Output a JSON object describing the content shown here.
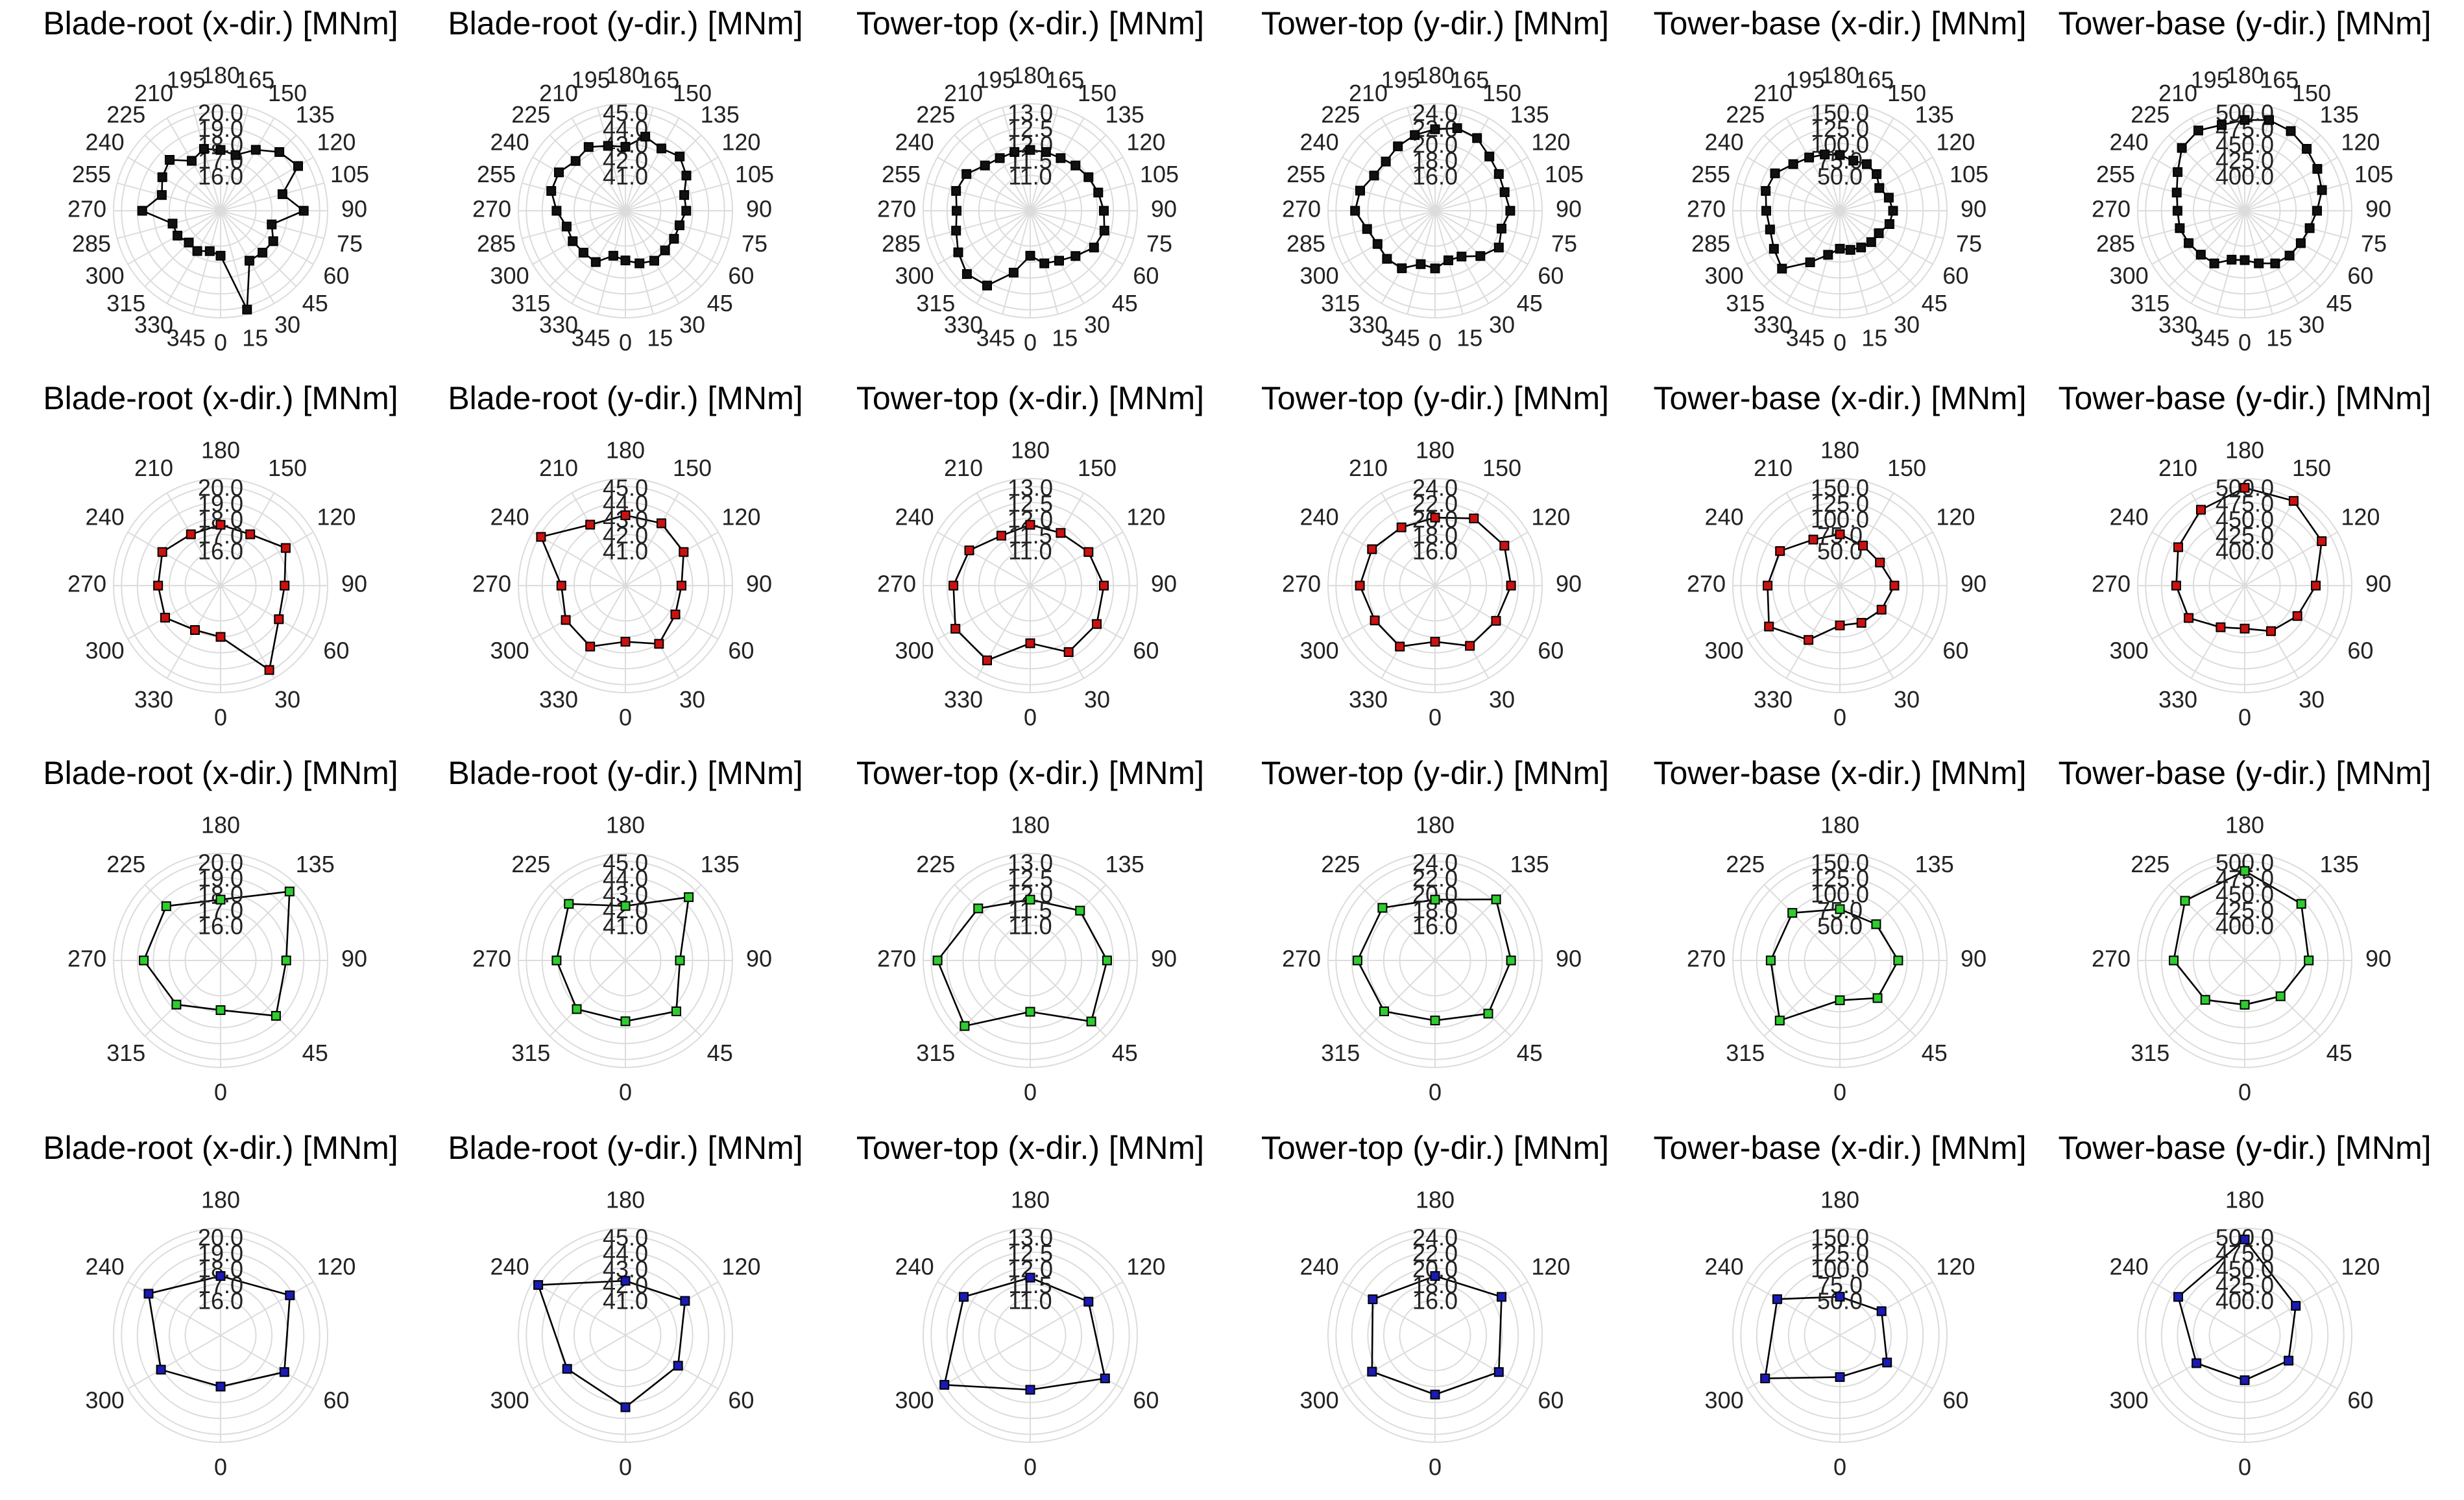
{
  "chart_data": {
    "type": "polar",
    "grid": true,
    "angle_direction": "counterclockwise, 0 at bottom",
    "panels_layout": "4 rows x 6 columns",
    "columns": [
      {
        "title": "Blade-root (x-dir.) [MNm]",
        "radial_ticks": [
          "16.0",
          "17.0",
          "18.0",
          "19.0",
          "20.0"
        ],
        "rlim": [
          15,
          20.5
        ]
      },
      {
        "title": "Blade-root (y-dir.) [MNm]",
        "radial_ticks": [
          "41.0",
          "42.0",
          "43.0",
          "44.0",
          "45.0"
        ],
        "rlim": [
          40,
          45.5
        ]
      },
      {
        "title": "Tower-top (x-dir.) [MNm]",
        "radial_ticks": [
          "11.0",
          "11.5",
          "12.0",
          "12.5",
          "13.0"
        ],
        "rlim": [
          10.5,
          13.25
        ]
      },
      {
        "title": "Tower-top (y-dir.) [MNm]",
        "radial_ticks": [
          "16.0",
          "18.0",
          "20.0",
          "22.0",
          "24.0"
        ],
        "rlim": [
          14,
          25
        ]
      },
      {
        "title": "Tower-base (x-dir.) [MNm]",
        "radial_ticks": [
          "50.0",
          "75.0",
          "100.0",
          "125.0",
          "150.0"
        ],
        "rlim": [
          25,
          162.5
        ]
      },
      {
        "title": "Tower-base (y-dir.) [MNm]",
        "radial_ticks": [
          "400.0",
          "425.0",
          "450.0",
          "475.0",
          "500.0"
        ],
        "rlim": [
          375,
          512.5
        ]
      }
    ],
    "rows": [
      {
        "angle_step": 15,
        "angle_ticks": [
          "0",
          "15",
          "30",
          "45",
          "60",
          "75",
          "90",
          "105",
          "120",
          "135",
          "150",
          "165",
          "180",
          "195",
          "210",
          "225",
          "240",
          "255",
          "270",
          "285",
          "300",
          "315",
          "330",
          "345"
        ],
        "marker_color": "#111111",
        "series": [
          [
            16.6,
            20.2,
            17.4,
            17.5,
            17.6,
            17.1,
            19.0,
            17.8,
            19.4,
            19.0,
            18.2,
            17.4,
            17.6,
            17.8,
            17.4,
            18.3,
            18.0,
            17.6,
            18.7,
            16.9,
            16.9,
            16.6,
            16.7,
            16.4
          ],
          [
            41.9,
            42.2,
            42.4,
            42.3,
            42.3,
            42.3,
            42.6,
            42.6,
            43.2,
            43.6,
            43.3,
            43.6,
            42.8,
            43.0,
            43.4,
            43.2,
            43.6,
            43.6,
            43.1,
            42.6,
            42.6,
            42.5,
            42.5,
            41.7
          ],
          [
            11.3,
            11.6,
            11.7,
            11.9,
            12.2,
            12.3,
            12.2,
            12.1,
            12.0,
            11.9,
            11.8,
            11.8,
            11.8,
            11.8,
            11.8,
            11.9,
            12.2,
            12.3,
            12.2,
            12.3,
            12.5,
            12.7,
            12.6,
            11.9
          ],
          [
            18.8,
            18.0,
            18.2,
            19.6,
            20.8,
            20.2,
            21.0,
            20.6,
            20.8,
            21.2,
            22.1,
            22.3,
            21.8,
            21.4,
            20.9,
            20.3,
            20.4,
            21.3,
            21.6,
            20.4,
            19.9,
            20.1,
            19.9,
            18.5
          ],
          [
            54.0,
            58.0,
            61.0,
            64.0,
            65.0,
            75.0,
            78.0,
            74.0,
            66.0,
            76.0,
            79.0,
            76.0,
            82.0,
            86.0,
            91.0,
            98.0,
            112.0,
            115.0,
            110.0,
            108.0,
            114.0,
            123.0,
            88.0,
            66.0
          ],
          [
            422.0,
            430.0,
            440.0,
            444.0,
            446.0,
            450.0,
            458.0,
            470.0,
            476.0,
            482.0,
            489.0,
            492.0,
            487.0,
            484.0,
            490.0,
            484.0,
            466.0,
            455.0,
            450.0,
            450.0,
            446.0,
            442.0,
            440.0,
            424.0
          ]
        ]
      },
      {
        "angle_step": 30,
        "angle_ticks": [
          "0",
          "30",
          "60",
          "90",
          "120",
          "150",
          "180",
          "210",
          "240",
          "270",
          "300",
          "330"
        ],
        "marker_color": "#cc1111",
        "series": [
          [
            17.0,
            19.9,
            18.0,
            17.8,
            18.5,
            17.5,
            17.6,
            17.5,
            18.0,
            17.7,
            17.8,
            17.0
          ],
          [
            42.3,
            43.0,
            42.4,
            42.3,
            43.0,
            43.3,
            43.2,
            43.2,
            44.9,
            42.8,
            43.1,
            43.2
          ],
          [
            11.7,
            12.3,
            12.3,
            12.2,
            12.0,
            11.8,
            11.8,
            11.7,
            12.1,
            12.3,
            12.6,
            12.6
          ],
          [
            18.6,
            20.3,
            20.4,
            21.1,
            21.6,
            21.3,
            20.1,
            20.0,
            20.7,
            21.0,
            20.3,
            20.4
          ],
          [
            57.0,
            62.0,
            70.0,
            80.0,
            67.0,
            67.0,
            75.0,
            78.0,
            103.0,
            108.0,
            123.0,
            93.0
          ],
          [
            412.0,
            427.0,
            440.0,
            456.0,
            484.0,
            498.0,
            498.0,
            482.0,
            465.0,
            452.0,
            446.0,
            420.0
          ]
        ]
      },
      {
        "angle_step": 45,
        "angle_ticks": [
          "0",
          "45",
          "90",
          "135",
          "180",
          "225",
          "270",
          "315"
        ],
        "marker_color": "#2ecc2e",
        "series": [
          [
            16.9,
            18.7,
            17.9,
            19.9,
            17.6,
            18.6,
            18.6,
            17.7
          ],
          [
            42.6,
            43.3,
            42.2,
            44.4,
            42.2,
            43.8,
            43.1,
            43.1
          ],
          [
            11.5,
            12.6,
            12.3,
            12.1,
            11.8,
            12.2,
            12.8,
            12.8
          ],
          [
            19.1,
            21.0,
            21.1,
            22.4,
            19.2,
            20.9,
            21.3,
            20.6
          ],
          [
            57.0,
            78.0,
            86.0,
            75.0,
            75.0,
            100.0,
            103.0,
            128.0
          ],
          [
            414.0,
            424.0,
            445.0,
            470.0,
            485.0,
            477.0,
            456.0,
            432.0
          ]
        ]
      },
      {
        "angle_step": 60,
        "angle_ticks": [
          "0",
          "60",
          "120",
          "180",
          "240",
          "300"
        ],
        "marker_color": "#1a1ab4",
        "series": [
          [
            17.0,
            18.4,
            18.8,
            17.5,
            19.0,
            18.1
          ],
          [
            43.3,
            42.6,
            43.1,
            42.2,
            45.1,
            43.0
          ],
          [
            11.6,
            12.6,
            12.0,
            11.7,
            12.3,
            13.0
          ],
          [
            19.0,
            20.8,
            21.2,
            19.0,
            20.6,
            20.7
          ],
          [
            60.0,
            80.0,
            70.0,
            55.0,
            108.0,
            130.0
          ],
          [
            415.0,
            424.0,
            437.0,
            495.0,
            465.0,
            432.0
          ]
        ]
      }
    ]
  },
  "colors": {
    "grid": "#dcdcdc",
    "line": "#000000",
    "text": "#222222",
    "background": "#ffffff"
  }
}
